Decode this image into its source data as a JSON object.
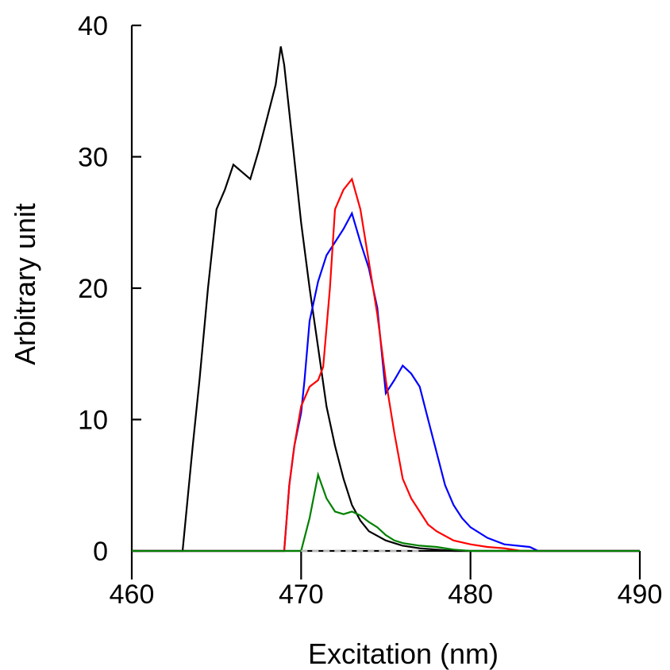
{
  "chart_data": {
    "type": "line",
    "xlabel": "Excitation (nm)",
    "ylabel": "Arbitrary unit",
    "xlim": [
      460,
      490
    ],
    "ylim": [
      0,
      40
    ],
    "xticks": [
      "460",
      "470",
      "480",
      "490"
    ],
    "yticks": [
      "0",
      "10",
      "20",
      "30",
      "40"
    ],
    "grid": false,
    "legend": "none",
    "series": [
      {
        "color": "#000000",
        "points": [
          [
            460,
            0
          ],
          [
            463,
            0
          ],
          [
            463.3,
            4
          ],
          [
            463.6,
            8
          ],
          [
            464,
            13
          ],
          [
            464.5,
            20
          ],
          [
            465,
            26
          ],
          [
            465.5,
            27.5
          ],
          [
            466,
            29.4
          ],
          [
            467,
            28.3
          ],
          [
            467.5,
            30.5
          ],
          [
            468,
            33
          ],
          [
            468.5,
            35.5
          ],
          [
            468.8,
            38.4
          ],
          [
            469,
            37
          ],
          [
            469.5,
            31
          ],
          [
            470,
            25
          ],
          [
            470.5,
            20
          ],
          [
            471,
            15.5
          ],
          [
            471.5,
            11
          ],
          [
            472,
            8
          ],
          [
            472.5,
            5.5
          ],
          [
            473,
            3.5
          ],
          [
            473.5,
            2.3
          ],
          [
            474,
            1.5
          ],
          [
            475,
            0.8
          ],
          [
            476,
            0.4
          ],
          [
            477,
            0.2
          ],
          [
            478,
            0.1
          ],
          [
            479,
            0
          ],
          [
            490,
            0
          ]
        ]
      },
      {
        "color": "#0000ff",
        "points": [
          [
            460,
            0
          ],
          [
            469,
            0
          ],
          [
            469.3,
            5
          ],
          [
            469.6,
            8
          ],
          [
            470,
            10.5
          ],
          [
            470.2,
            13
          ],
          [
            470.5,
            17.5
          ],
          [
            471,
            20.5
          ],
          [
            471.5,
            22.5
          ],
          [
            472,
            23.5
          ],
          [
            472.5,
            24.5
          ],
          [
            473,
            25.7
          ],
          [
            473.5,
            23.5
          ],
          [
            474,
            21.5
          ],
          [
            474.5,
            18.5
          ],
          [
            475,
            12
          ],
          [
            475.5,
            13
          ],
          [
            476,
            14.1
          ],
          [
            476.5,
            13.5
          ],
          [
            477,
            12.5
          ],
          [
            477.5,
            10
          ],
          [
            478,
            7.5
          ],
          [
            478.5,
            5
          ],
          [
            479,
            3.5
          ],
          [
            479.5,
            2.5
          ],
          [
            480,
            1.8
          ],
          [
            481,
            1
          ],
          [
            482,
            0.5
          ],
          [
            483.5,
            0.3
          ],
          [
            484,
            0
          ],
          [
            490,
            0
          ]
        ]
      },
      {
        "color": "#ff0000",
        "points": [
          [
            460,
            0
          ],
          [
            469,
            0
          ],
          [
            469.3,
            5
          ],
          [
            469.6,
            8
          ],
          [
            470,
            11
          ],
          [
            470.5,
            12.5
          ],
          [
            471,
            13
          ],
          [
            471.3,
            14
          ],
          [
            471.7,
            20
          ],
          [
            472,
            26
          ],
          [
            472.5,
            27.5
          ],
          [
            473,
            28.3
          ],
          [
            473.5,
            26
          ],
          [
            474,
            22
          ],
          [
            474.5,
            18
          ],
          [
            475,
            13
          ],
          [
            475.5,
            9
          ],
          [
            476,
            5.5
          ],
          [
            476.5,
            4
          ],
          [
            477,
            3
          ],
          [
            477.5,
            2
          ],
          [
            478,
            1.5
          ],
          [
            479,
            0.8
          ],
          [
            480,
            0.5
          ],
          [
            481,
            0.3
          ],
          [
            482,
            0.2
          ],
          [
            483,
            0
          ],
          [
            490,
            0
          ]
        ]
      },
      {
        "color": "#008000",
        "points": [
          [
            460,
            0
          ],
          [
            470,
            0
          ],
          [
            470.5,
            2.5
          ],
          [
            471,
            5.8
          ],
          [
            471.5,
            4
          ],
          [
            472,
            3
          ],
          [
            472.5,
            2.8
          ],
          [
            473,
            3
          ],
          [
            473.5,
            2.7
          ],
          [
            474,
            2.2
          ],
          [
            474.5,
            1.8
          ],
          [
            475,
            1.2
          ],
          [
            475.5,
            0.8
          ],
          [
            476,
            0.6
          ],
          [
            477,
            0.4
          ],
          [
            478,
            0.3
          ],
          [
            479,
            0.1
          ],
          [
            480,
            0
          ],
          [
            490,
            0
          ]
        ]
      },
      {
        "color": "#bbbbbb",
        "dashed": true,
        "points": [
          [
            470,
            0
          ],
          [
            477,
            0
          ]
        ]
      }
    ]
  }
}
